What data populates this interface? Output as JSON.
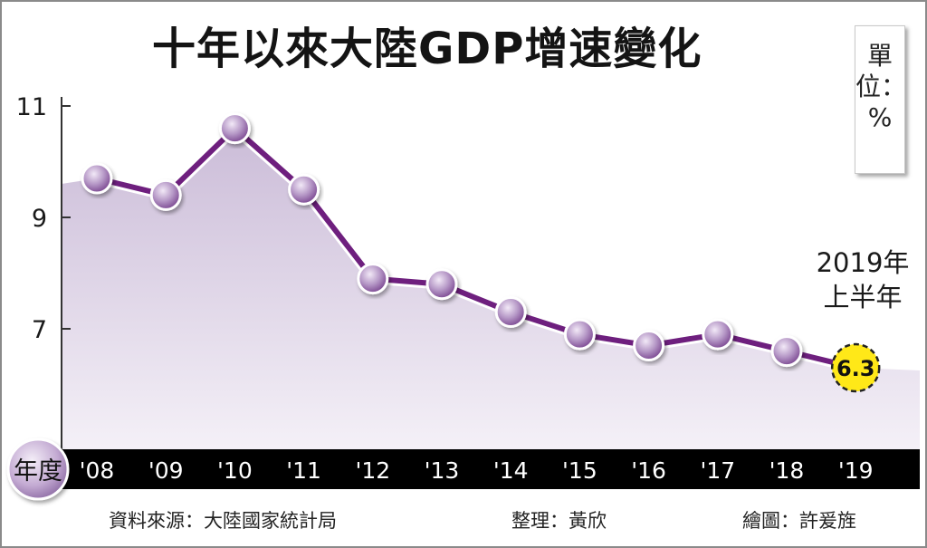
{
  "title": "十年以來大陸GDP增速變化",
  "unit_label": "單位：%",
  "annotation": {
    "line1": "2019年",
    "line2": "上半年",
    "highlight_value": "6.3"
  },
  "x_axis_badge": "年度",
  "footer": {
    "source": "資料來源：大陸國家統計局",
    "editor": "整理：黃欣",
    "artist": "繪圖：許爰旌"
  },
  "colors": {
    "line": "#6e1f7e",
    "marker": "#b89ac8",
    "area": "#d9cde3",
    "highlight": "#ffe818",
    "axis_bar": "#000000"
  },
  "chart_data": {
    "type": "line",
    "title": "十年以來大陸GDP增速變化",
    "xlabel": "年度",
    "ylabel": "單位：%",
    "categories": [
      "'08",
      "'09",
      "'10",
      "'11",
      "'12",
      "'13",
      "'14",
      "'15",
      "'16",
      "'17",
      "'18",
      "'19"
    ],
    "values": [
      9.7,
      9.4,
      10.6,
      9.5,
      7.9,
      7.8,
      7.3,
      6.9,
      6.7,
      6.9,
      6.6,
      6.3
    ],
    "y_ticks": [
      7,
      9,
      11
    ],
    "ylim": [
      4.9,
      11.1
    ],
    "grid": false,
    "legend": "none"
  }
}
